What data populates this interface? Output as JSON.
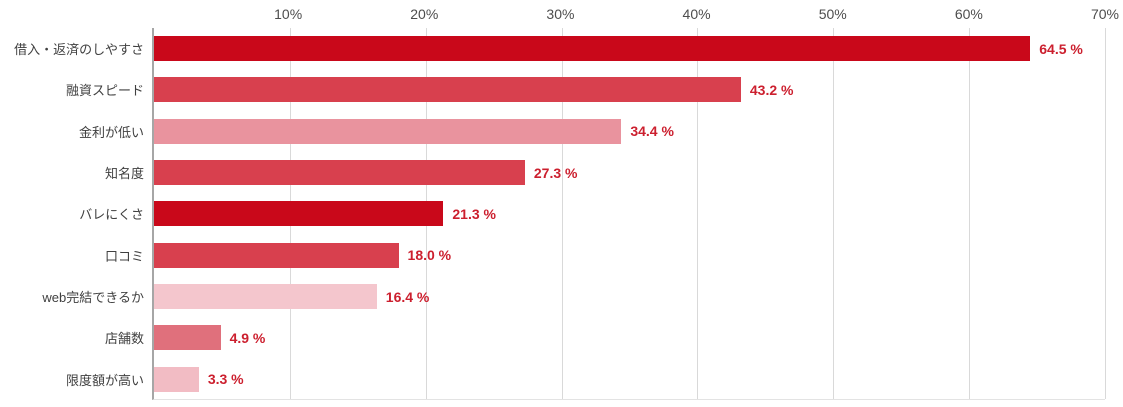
{
  "chart_data": {
    "type": "bar",
    "orientation": "horizontal",
    "title": "",
    "xlabel": "",
    "ylabel": "",
    "xlim": [
      0,
      70
    ],
    "grid": true,
    "legend": "none",
    "categories": [
      "借入・返済のしやすさ",
      "融資スピード",
      "金利が低い",
      "知名度",
      "バレにくさ",
      "口コミ",
      "web完結できるか",
      "店舗数",
      "限度額が高い"
    ],
    "values": [
      64.5,
      43.2,
      34.4,
      27.3,
      21.3,
      18.0,
      16.4,
      4.9,
      3.3
    ],
    "value_labels": [
      "64.5 %",
      "43.2 %",
      "34.4 %",
      "27.3 %",
      "21.3 %",
      "18.0 %",
      "16.4 %",
      "4.9 %",
      "3.3 %"
    ],
    "bar_colors": [
      "#c9081a",
      "#d8404e",
      "#e9939e",
      "#d8404e",
      "#c9081a",
      "#d8404e",
      "#f4c6cd",
      "#e0707c",
      "#f2bcc4"
    ],
    "x_ticks": [
      "10%",
      "20%",
      "30%",
      "40%",
      "50%",
      "60%",
      "70%"
    ],
    "x_tick_values": [
      10,
      20,
      30,
      40,
      50,
      60,
      70
    ],
    "value_label_color": "#cc1f2e",
    "gridline_color": "#d9d9d9",
    "axis_line_color": "#a6a6a6"
  }
}
